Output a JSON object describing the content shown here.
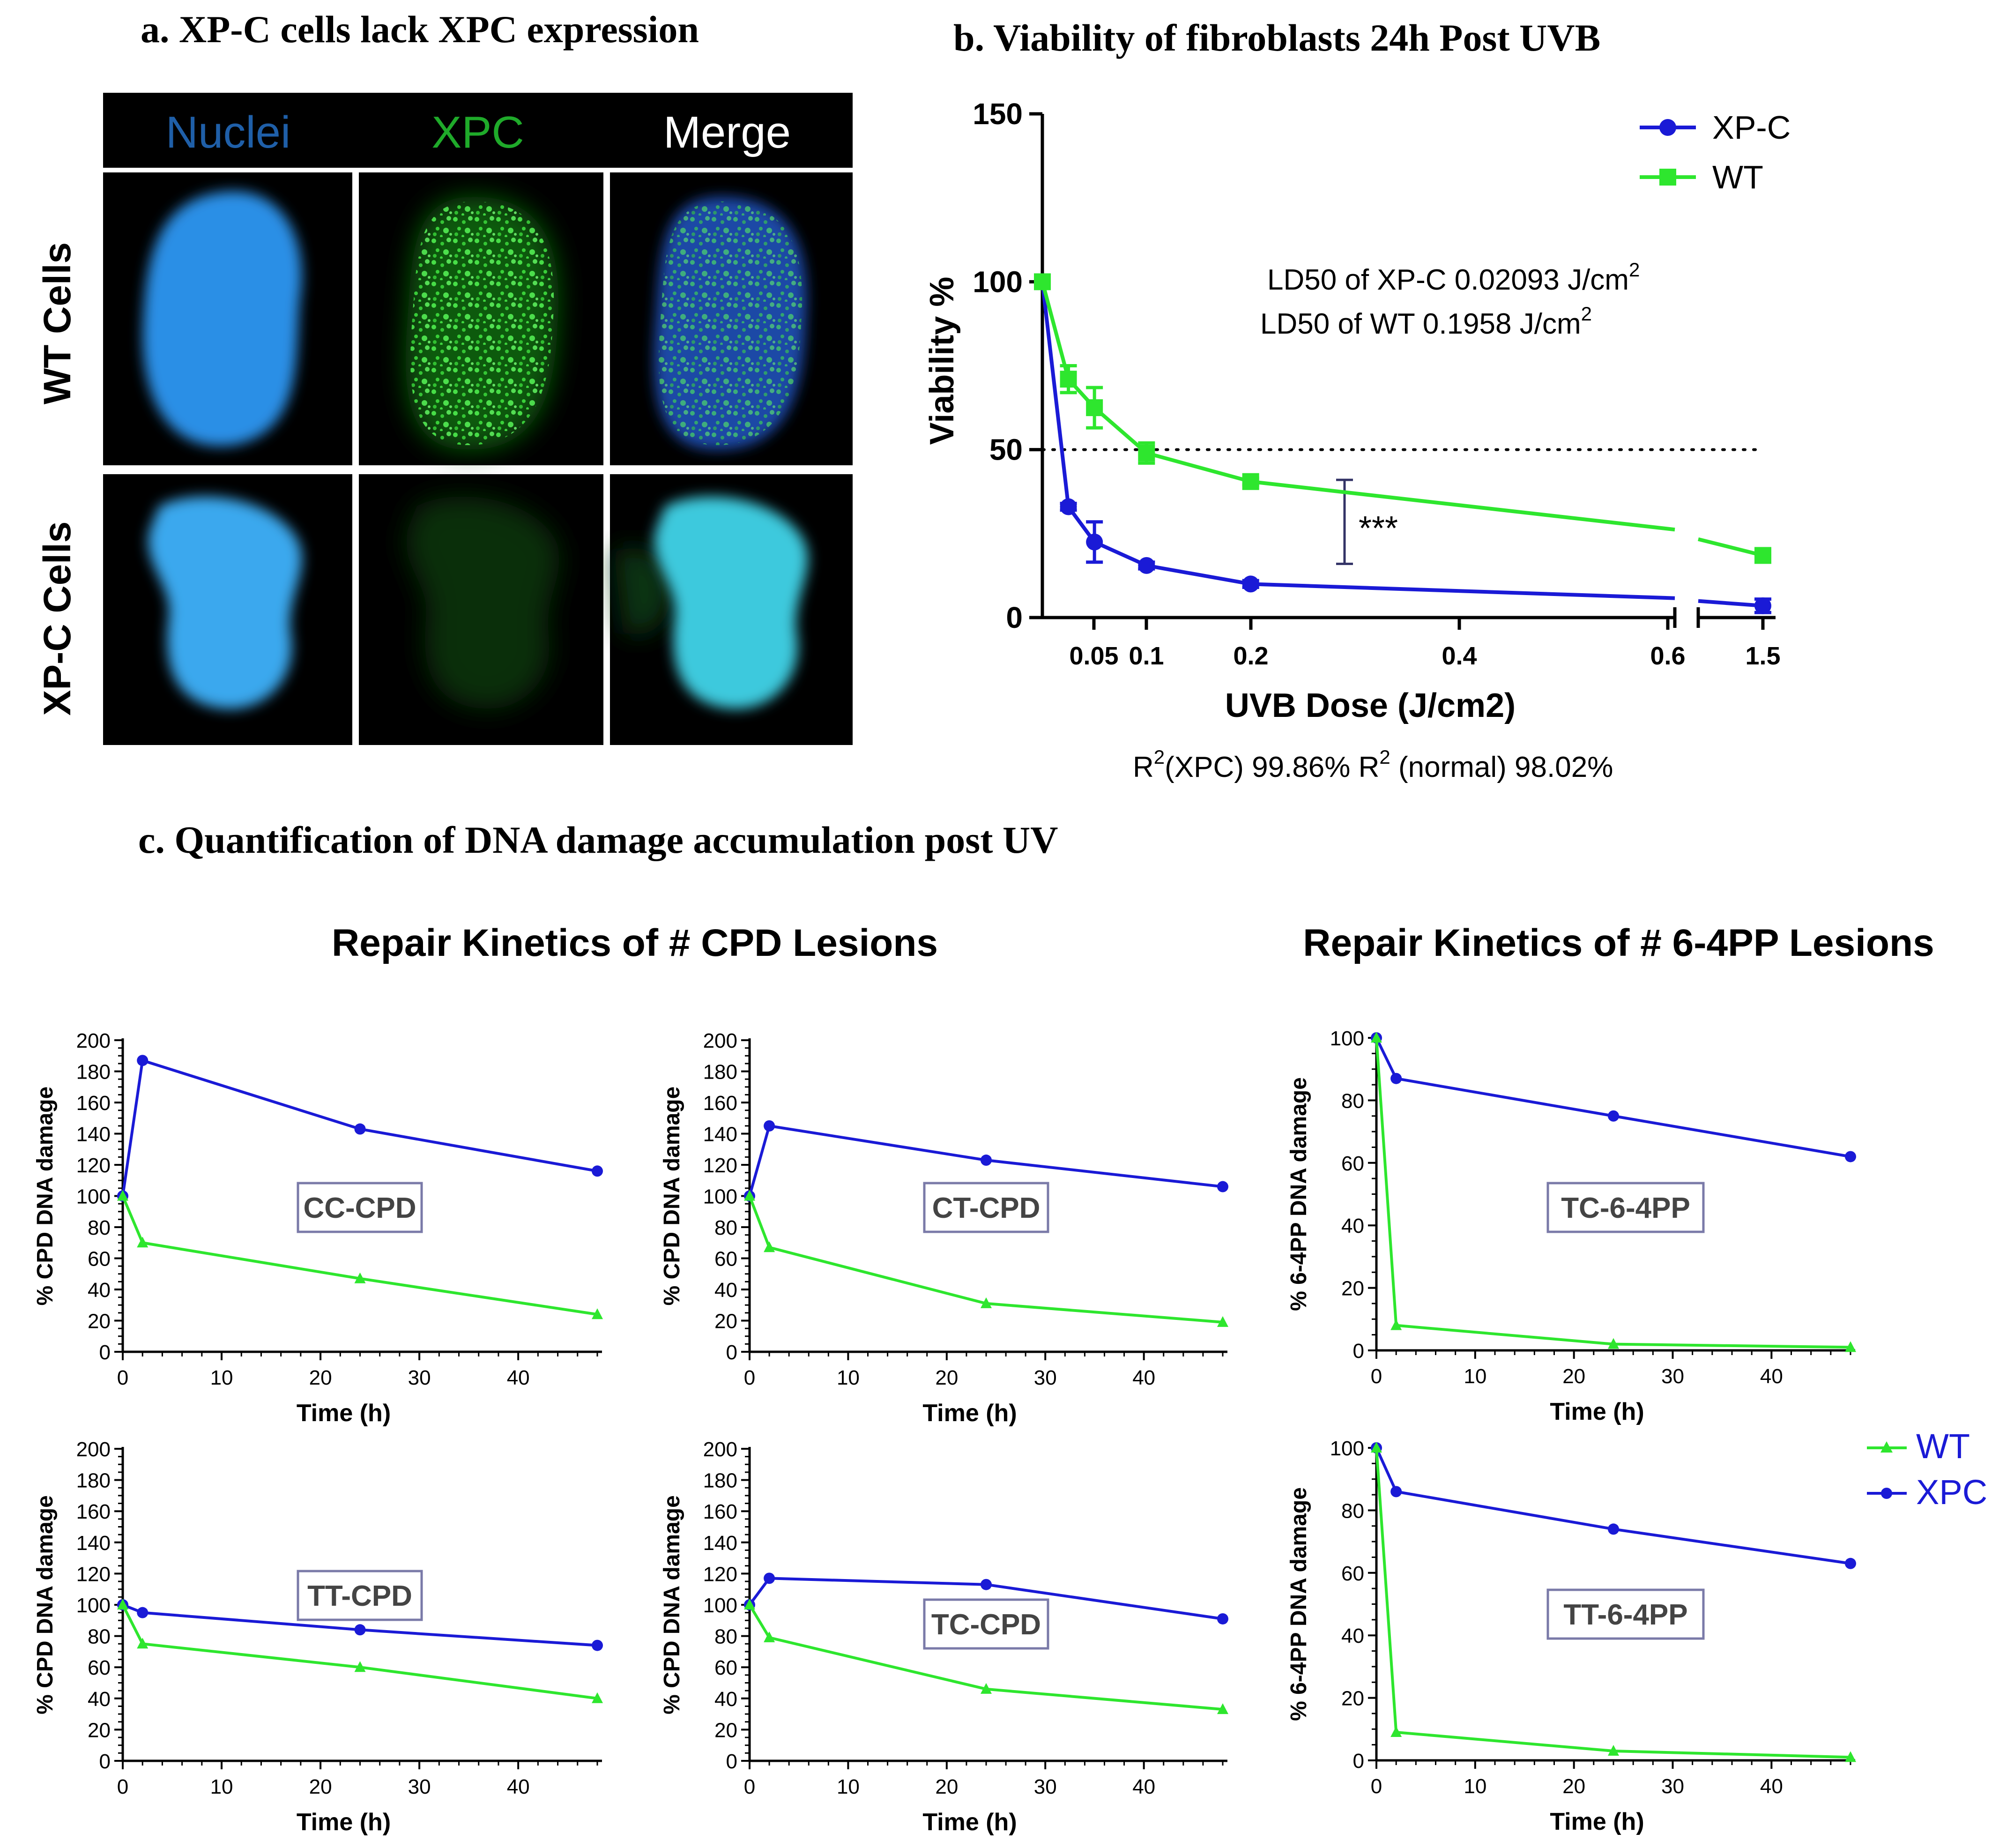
{
  "panel_a": {
    "title": "a. XP-C cells lack XPC expression",
    "columns": [
      "Nuclei",
      "XPC",
      "Merge"
    ],
    "column_colors": [
      "#1f5fa8",
      "#1faa2a",
      "#ffffff"
    ],
    "rows": [
      "WT Cells",
      "XP-C Cells"
    ],
    "nucleus_color": "#2c8fe6",
    "xpc_signal_color": "#2fd33a"
  },
  "panel_b": {
    "title": "b. Viability of fibroblasts 24h Post UVB",
    "annotations": {
      "ld50_xpc": "LD50 of XP-C 0.02093 J/cm",
      "ld50_wt": "LD50 of WT 0.1958 J/cm",
      "sup": "2",
      "significance": "***",
      "r2_part1": "R",
      "r2_part2": "(XPC) 99.86% R",
      "r2_part3": " (normal) 98.02%"
    },
    "chart_data": {
      "type": "line",
      "title": "b. Viability of fibroblasts 24h Post UVB",
      "xlabel": "UVB Dose (J/cm2)",
      "ylabel": "Viability %",
      "ylim": [
        0,
        150
      ],
      "yticks": [
        0,
        50,
        100,
        150
      ],
      "x_ticks": [
        "0.05",
        "0.1",
        "0.2",
        "0.4",
        "0.6",
        "1.5"
      ],
      "x_axis_break": "between 0.6 and 1.5",
      "reference_line_y": 50,
      "legend": "top-right",
      "series": [
        {
          "name": "XP-C",
          "color": "#1a1ad6",
          "marker": "circle",
          "x": [
            0,
            0.05,
            0.1,
            0.2,
            0.4,
            1.5
          ],
          "y": [
            100,
            33,
            22.5,
            15.5,
            10,
            3.5
          ],
          "err": [
            0,
            1,
            6,
            1,
            1,
            2
          ]
        },
        {
          "name": "WT",
          "color": "#2ee62e",
          "marker": "square",
          "x": [
            0,
            0.05,
            0.1,
            0.2,
            0.4,
            1.5
          ],
          "y": [
            100,
            71,
            62.5,
            49,
            40.5,
            18.5
          ],
          "err": [
            0,
            4,
            6,
            3,
            1,
            1
          ]
        }
      ]
    }
  },
  "panel_c": {
    "title": "c. Quantification of DNA damage accumulation post UV",
    "cpd_heading": "Repair Kinetics of # CPD Lesions",
    "pp_heading": "Repair Kinetics of # 6-4PP Lesions",
    "legend": [
      {
        "name": "WT",
        "color": "#2ee62e",
        "marker": "triangle"
      },
      {
        "name": "XPC",
        "color": "#1a1ad6",
        "marker": "circle"
      }
    ],
    "chart_data": [
      {
        "type": "line",
        "label": "CC-CPD",
        "xlabel": "Time (h)",
        "ylabel": "% CPD DNA damage",
        "ylim": [
          0,
          200
        ],
        "yticks": [
          0,
          20,
          40,
          60,
          80,
          100,
          120,
          140,
          160,
          180,
          200
        ],
        "xticks": [
          0,
          10,
          20,
          30,
          40
        ],
        "x": [
          0,
          2,
          24,
          48
        ],
        "series": [
          {
            "name": "XPC",
            "values": [
              100,
              187,
              143,
              116
            ]
          },
          {
            "name": "WT",
            "values": [
              100,
              70,
              47,
              24
            ]
          }
        ]
      },
      {
        "type": "line",
        "label": "CT-CPD",
        "xlabel": "Time (h)",
        "ylabel": "% CPD DNA damage",
        "ylim": [
          0,
          200
        ],
        "yticks": [
          0,
          20,
          40,
          60,
          80,
          100,
          120,
          140,
          160,
          180,
          200
        ],
        "xticks": [
          0,
          10,
          20,
          30,
          40
        ],
        "x": [
          0,
          2,
          24,
          48
        ],
        "series": [
          {
            "name": "XPC",
            "values": [
              100,
              145,
              123,
              106
            ]
          },
          {
            "name": "WT",
            "values": [
              100,
              67,
              31,
              19
            ]
          }
        ]
      },
      {
        "type": "line",
        "label": "TC-6-4PP",
        "xlabel": "Time (h)",
        "ylabel": "% 6-4PP DNA damage",
        "ylim": [
          0,
          100
        ],
        "yticks": [
          0,
          20,
          40,
          60,
          80,
          100
        ],
        "xticks": [
          0,
          10,
          20,
          30,
          40
        ],
        "x": [
          0,
          2,
          24,
          48
        ],
        "series": [
          {
            "name": "XPC",
            "values": [
              100,
              87,
              75,
              62
            ]
          },
          {
            "name": "WT",
            "values": [
              100,
              8,
              2,
              1
            ]
          }
        ]
      },
      {
        "type": "line",
        "label": "TT-CPD",
        "xlabel": "Time (h)",
        "ylabel": "% CPD DNA damage",
        "ylim": [
          0,
          200
        ],
        "yticks": [
          0,
          20,
          40,
          60,
          80,
          100,
          120,
          140,
          160,
          180,
          200
        ],
        "xticks": [
          0,
          10,
          20,
          30,
          40
        ],
        "x": [
          0,
          2,
          24,
          48
        ],
        "series": [
          {
            "name": "XPC",
            "values": [
              100,
              95,
              84,
              74
            ]
          },
          {
            "name": "WT",
            "values": [
              100,
              75,
              60,
              40
            ]
          }
        ]
      },
      {
        "type": "line",
        "label": "TC-CPD",
        "xlabel": "Time (h)",
        "ylabel": "% CPD DNA damage",
        "ylim": [
          0,
          200
        ],
        "yticks": [
          0,
          20,
          40,
          60,
          80,
          100,
          120,
          140,
          160,
          180,
          200
        ],
        "xticks": [
          0,
          10,
          20,
          30,
          40
        ],
        "x": [
          0,
          2,
          24,
          48
        ],
        "series": [
          {
            "name": "XPC",
            "values": [
              100,
              117,
              113,
              91
            ]
          },
          {
            "name": "WT",
            "values": [
              100,
              79,
              46,
              33
            ]
          }
        ]
      },
      {
        "type": "line",
        "label": "TT-6-4PP",
        "xlabel": "Time (h)",
        "ylabel": "% 6-4PP DNA damage",
        "ylim": [
          0,
          100
        ],
        "yticks": [
          0,
          20,
          40,
          60,
          80,
          100
        ],
        "xticks": [
          0,
          10,
          20,
          30,
          40
        ],
        "x": [
          0,
          2,
          24,
          48
        ],
        "series": [
          {
            "name": "XPC",
            "values": [
              100,
              86,
              74,
              63
            ]
          },
          {
            "name": "WT",
            "values": [
              100,
              9,
              3,
              1
            ]
          }
        ]
      }
    ]
  }
}
